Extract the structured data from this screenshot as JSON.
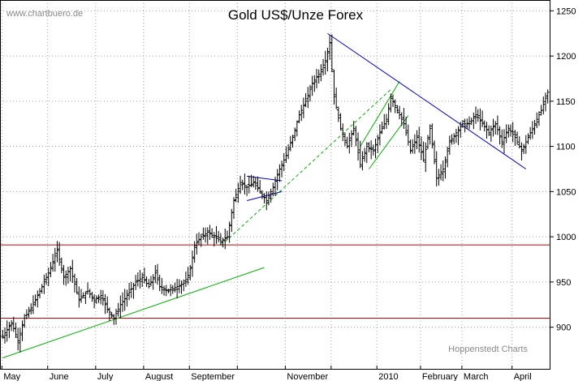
{
  "chart_data": {
    "type": "ohlc",
    "title": "Gold US$/Unze Forex",
    "watermark": "www.chartbuero.de",
    "credit": "Hoppenstedt Charts",
    "ylim": [
      853,
      1262
    ],
    "yticks": [
      900,
      950,
      1000,
      1050,
      1100,
      1150,
      1200,
      1250
    ],
    "grid": true,
    "months": [
      {
        "label": "May",
        "start": 0
      },
      {
        "label": "June",
        "start": 21
      },
      {
        "label": "July",
        "start": 43
      },
      {
        "label": "August",
        "start": 65
      },
      {
        "label": "September",
        "start": 86
      },
      {
        "label": "",
        "start": 108
      },
      {
        "label": "November",
        "start": 130
      },
      {
        "label": "",
        "start": 151
      },
      {
        "label": "2010",
        "start": 172
      },
      {
        "label": "February",
        "start": 192
      },
      {
        "label": "March",
        "start": 211
      },
      {
        "label": "April",
        "start": 234
      }
    ],
    "n_days": 251,
    "close_anchors": [
      [
        0,
        890
      ],
      [
        4,
        905
      ],
      [
        7,
        885
      ],
      [
        10,
        910
      ],
      [
        14,
        925
      ],
      [
        18,
        945
      ],
      [
        21,
        960
      ],
      [
        25,
        985
      ],
      [
        28,
        955
      ],
      [
        31,
        965
      ],
      [
        35,
        930
      ],
      [
        39,
        940
      ],
      [
        42,
        930
      ],
      [
        45,
        935
      ],
      [
        48,
        920
      ],
      [
        51,
        910
      ],
      [
        54,
        925
      ],
      [
        57,
        935
      ],
      [
        61,
        950
      ],
      [
        64,
        955
      ],
      [
        67,
        945
      ],
      [
        70,
        960
      ],
      [
        72,
        945
      ],
      [
        76,
        940
      ],
      [
        80,
        945
      ],
      [
        84,
        950
      ],
      [
        86,
        965
      ],
      [
        88,
        990
      ],
      [
        91,
        1000
      ],
      [
        94,
        1005
      ],
      [
        97,
        1000
      ],
      [
        100,
        995
      ],
      [
        103,
        1000
      ],
      [
        106,
        1040
      ],
      [
        109,
        1060
      ],
      [
        112,
        1055
      ],
      [
        115,
        1060
      ],
      [
        118,
        1050
      ],
      [
        121,
        1040
      ],
      [
        124,
        1055
      ],
      [
        127,
        1075
      ],
      [
        130,
        1090
      ],
      [
        133,
        1110
      ],
      [
        136,
        1135
      ],
      [
        139,
        1150
      ],
      [
        142,
        1170
      ],
      [
        145,
        1180
      ],
      [
        148,
        1195
      ],
      [
        150,
        1215
      ],
      [
        152,
        1155
      ],
      [
        155,
        1120
      ],
      [
        158,
        1100
      ],
      [
        161,
        1120
      ],
      [
        164,
        1080
      ],
      [
        167,
        1100
      ],
      [
        170,
        1095
      ],
      [
        173,
        1115
      ],
      [
        176,
        1130
      ],
      [
        178,
        1155
      ],
      [
        181,
        1140
      ],
      [
        184,
        1125
      ],
      [
        187,
        1095
      ],
      [
        190,
        1110
      ],
      [
        193,
        1085
      ],
      [
        196,
        1120
      ],
      [
        199,
        1065
      ],
      [
        202,
        1075
      ],
      [
        205,
        1105
      ],
      [
        208,
        1115
      ],
      [
        211,
        1125
      ],
      [
        214,
        1125
      ],
      [
        217,
        1135
      ],
      [
        220,
        1125
      ],
      [
        223,
        1115
      ],
      [
        226,
        1125
      ],
      [
        229,
        1105
      ],
      [
        232,
        1120
      ],
      [
        235,
        1110
      ],
      [
        238,
        1095
      ],
      [
        241,
        1110
      ],
      [
        244,
        1125
      ],
      [
        247,
        1140
      ],
      [
        250,
        1160
      ],
      [
        253,
        1155
      ],
      [
        256,
        1150
      ],
      [
        258,
        1135
      ]
    ],
    "horizontal_lines": [
      {
        "value": 991,
        "color": "#c00000"
      },
      {
        "value": 910,
        "color": "#c00000"
      }
    ],
    "trendlines": [
      {
        "from": [
          0,
          866
        ],
        "to": [
          120,
          966
        ],
        "color": "#00b000",
        "style": "solid"
      },
      {
        "from": [
          100,
          990
        ],
        "to": [
          178,
          1163
        ],
        "color": "#00b000",
        "style": "dashed"
      },
      {
        "from": [
          168,
          1075
        ],
        "to": [
          186,
          1134
        ],
        "color": "#00b000",
        "style": "solid"
      },
      {
        "from": [
          164,
          1100
        ],
        "to": [
          182,
          1172
        ],
        "color": "#00b000",
        "style": "solid"
      },
      {
        "from": [
          112,
          1067
        ],
        "to": [
          128,
          1062
        ],
        "color": "#0000cc",
        "style": "solid"
      },
      {
        "from": [
          112,
          1040
        ],
        "to": [
          128,
          1050
        ],
        "color": "#0000cc",
        "style": "solid"
      },
      {
        "from": [
          149,
          1225
        ],
        "to": [
          240,
          1075
        ],
        "color": "#0000cc",
        "style": "solid"
      }
    ],
    "colors": {
      "bars": "#000000",
      "grid": "#a0a0a0",
      "frame": "#000000"
    }
  }
}
